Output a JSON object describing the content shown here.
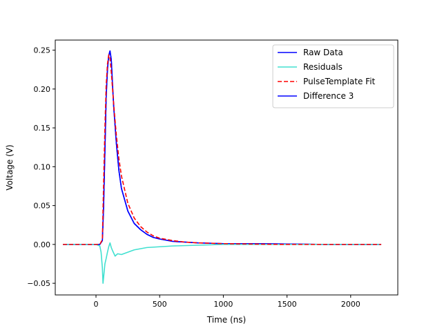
{
  "chart_data": {
    "type": "line",
    "title": "",
    "xlabel": "Time (ns)",
    "ylabel": "Voltage (V)",
    "xlim": [
      -320,
      2370
    ],
    "ylim": [
      -0.065,
      0.263
    ],
    "xticks": [
      {
        "value": 0,
        "label": "0"
      },
      {
        "value": 500,
        "label": "500"
      },
      {
        "value": 1000,
        "label": "1000"
      },
      {
        "value": 1500,
        "label": "1500"
      },
      {
        "value": 2000,
        "label": "2000"
      }
    ],
    "yticks": [
      {
        "value": -0.05,
        "label": "−0.05"
      },
      {
        "value": 0.0,
        "label": "0.00"
      },
      {
        "value": 0.05,
        "label": "0.05"
      },
      {
        "value": 0.1,
        "label": "0.10"
      },
      {
        "value": 0.15,
        "label": "0.15"
      },
      {
        "value": 0.2,
        "label": "0.20"
      },
      {
        "value": 0.25,
        "label": "0.25"
      }
    ],
    "grid": false,
    "legend_position": "upper right",
    "legend": [
      {
        "label": "Raw Data",
        "color": "#0000ff",
        "dash": "solid"
      },
      {
        "label": "Residuals",
        "color": "#40e0d0",
        "dash": "solid"
      },
      {
        "label": "PulseTemplate Fit",
        "color": "#ff0000",
        "dash": "dashed"
      },
      {
        "label": "Difference 3",
        "color": "#0000ff",
        "dash": "solid"
      }
    ],
    "series": [
      {
        "name": "Raw Data",
        "color": "#0000ff",
        "dash": "solid",
        "x": [
          -260,
          -100,
          0,
          30,
          50,
          60,
          70,
          80,
          90,
          100,
          110,
          120,
          130,
          140,
          160,
          180,
          200,
          250,
          300,
          350,
          400,
          450,
          500,
          600,
          700,
          800,
          1000,
          1200,
          1500,
          1800,
          2000,
          2240
        ],
        "y": [
          0.0,
          0.0,
          0.0,
          0.0,
          0.005,
          0.05,
          0.12,
          0.19,
          0.225,
          0.243,
          0.249,
          0.238,
          0.205,
          0.175,
          0.13,
          0.095,
          0.072,
          0.043,
          0.027,
          0.019,
          0.013,
          0.009,
          0.007,
          0.004,
          0.003,
          0.002,
          0.001,
          0.001,
          0.0005,
          0.0,
          0.0,
          0.0
        ]
      },
      {
        "name": "Residuals",
        "color": "#40e0d0",
        "dash": "solid",
        "x": [
          -260,
          -100,
          0,
          30,
          40,
          50,
          55,
          60,
          70,
          80,
          90,
          100,
          110,
          120,
          130,
          150,
          170,
          200,
          250,
          300,
          400,
          500,
          600,
          800,
          1000,
          1500,
          2000,
          2240
        ],
        "y": [
          0.0,
          0.0,
          0.0,
          -0.002,
          -0.01,
          -0.03,
          -0.05,
          -0.042,
          -0.025,
          -0.018,
          -0.01,
          -0.003,
          0.002,
          -0.004,
          -0.008,
          -0.015,
          -0.012,
          -0.013,
          -0.01,
          -0.007,
          -0.004,
          -0.003,
          -0.002,
          -0.001,
          0.0,
          0.0,
          0.0,
          0.0
        ]
      },
      {
        "name": "PulseTemplate Fit",
        "color": "#ff0000",
        "dash": "dashed",
        "x": [
          -260,
          -100,
          0,
          30,
          50,
          60,
          70,
          80,
          90,
          100,
          110,
          120,
          130,
          140,
          160,
          180,
          200,
          250,
          300,
          350,
          400,
          450,
          500,
          600,
          700,
          800,
          1000,
          1200,
          1500,
          1800,
          2000,
          2240
        ],
        "y": [
          0.0,
          0.0,
          0.0,
          0.0,
          0.006,
          0.08,
          0.15,
          0.205,
          0.232,
          0.244,
          0.24,
          0.222,
          0.2,
          0.178,
          0.14,
          0.11,
          0.088,
          0.053,
          0.034,
          0.023,
          0.016,
          0.011,
          0.008,
          0.005,
          0.003,
          0.002,
          0.001,
          0.0005,
          0.0,
          0.0,
          0.0,
          0.0
        ]
      },
      {
        "name": "Difference 3",
        "color": "#0000ff",
        "dash": "solid",
        "x": [
          -260,
          -100,
          0,
          30,
          50,
          60,
          70,
          80,
          90,
          100,
          110,
          120,
          130,
          140,
          160,
          180,
          200,
          250,
          300,
          350,
          400,
          450,
          500,
          600,
          700,
          800,
          1000,
          1200,
          1500,
          1800,
          2000,
          2240
        ],
        "y": [
          0.0,
          0.0,
          0.0,
          0.0,
          0.005,
          0.05,
          0.12,
          0.19,
          0.225,
          0.243,
          0.249,
          0.238,
          0.205,
          0.175,
          0.13,
          0.095,
          0.072,
          0.043,
          0.027,
          0.019,
          0.013,
          0.009,
          0.007,
          0.004,
          0.003,
          0.002,
          0.001,
          0.001,
          0.0005,
          0.0,
          0.0,
          0.0
        ]
      }
    ]
  }
}
